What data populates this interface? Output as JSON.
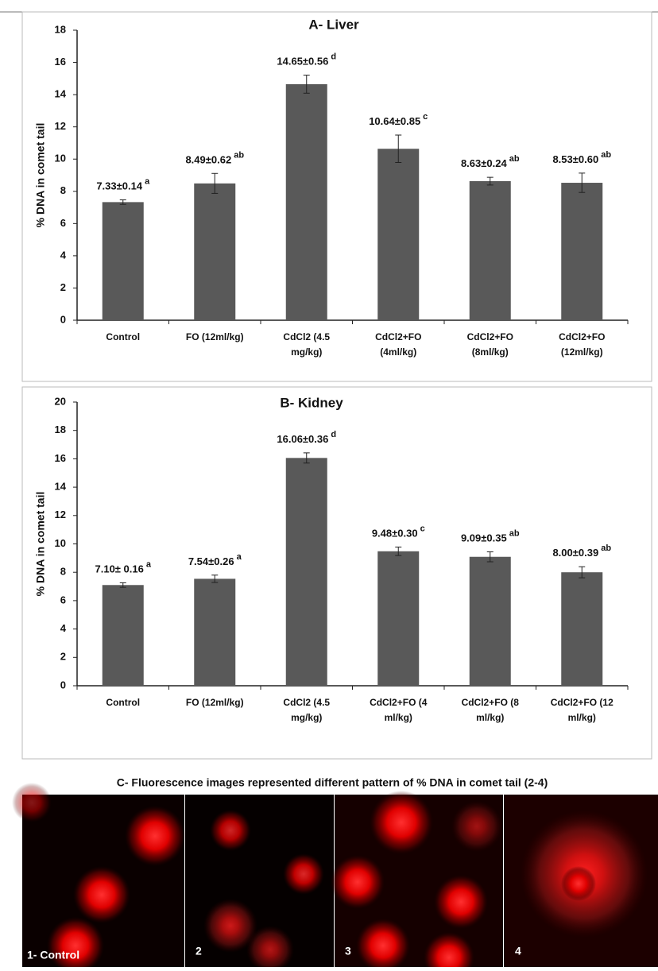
{
  "chart_data": [
    {
      "type": "bar",
      "title": "A- Liver",
      "y_label": "% DNA in comet tail",
      "categories": [
        [
          "Control"
        ],
        [
          "FO (12ml/kg)"
        ],
        [
          "CdCl2 (4.5",
          "mg/kg)"
        ],
        [
          "CdCl2+FO",
          "(4ml/kg)"
        ],
        [
          "CdCl2+FO",
          "(8ml/kg)"
        ],
        [
          "CdCl2+FO",
          "(12ml/kg)"
        ]
      ],
      "values": [
        7.33,
        8.49,
        14.65,
        10.64,
        8.63,
        8.53
      ],
      "errors": [
        0.14,
        0.62,
        0.56,
        0.85,
        0.24,
        0.6
      ],
      "value_labels": [
        "7.33±0.14",
        "8.49±0.62",
        "14.65±0.56",
        "10.64±0.85",
        "8.63±0.24",
        "8.53±0.60"
      ],
      "superscripts": [
        "a",
        "ab",
        "d",
        "c",
        "ab",
        "ab"
      ],
      "color": "#595959",
      "ylim": [
        0,
        18
      ],
      "yticks": [
        0,
        2,
        4,
        6,
        8,
        10,
        12,
        14,
        16,
        18
      ],
      "grid": false
    },
    {
      "type": "bar",
      "title": "B- Kidney",
      "y_label": "% DNA in comet tail",
      "categories": [
        [
          "Control"
        ],
        [
          "FO (12ml/kg)"
        ],
        [
          "CdCl2 (4.5",
          "mg/kg)"
        ],
        [
          "CdCl2+FO (4",
          "ml/kg)"
        ],
        [
          "CdCl2+FO (8",
          "ml/kg)"
        ],
        [
          "CdCl2+FO (12",
          "ml/kg)"
        ]
      ],
      "values": [
        7.1,
        7.54,
        16.06,
        9.48,
        9.09,
        8.0
      ],
      "errors": [
        0.16,
        0.26,
        0.36,
        0.3,
        0.35,
        0.39
      ],
      "value_labels": [
        "7.10± 0.16",
        "7.54±0.26",
        "16.06±0.36",
        "9.48±0.30",
        "9.09±0.35",
        "8.00±0.39"
      ],
      "superscripts": [
        "a",
        "a",
        "d",
        "c",
        "ab",
        "ab"
      ],
      "color": "#595959",
      "ylim": [
        0,
        20
      ],
      "yticks": [
        0,
        2,
        4,
        6,
        8,
        10,
        12,
        14,
        16,
        18,
        20
      ],
      "grid": false
    }
  ],
  "panel_c": {
    "caption": "C- Fluorescence images represented different pattern of % DNA in comet tail (2-4)",
    "image_labels": [
      "1- Control",
      "2",
      "3",
      "4"
    ]
  }
}
